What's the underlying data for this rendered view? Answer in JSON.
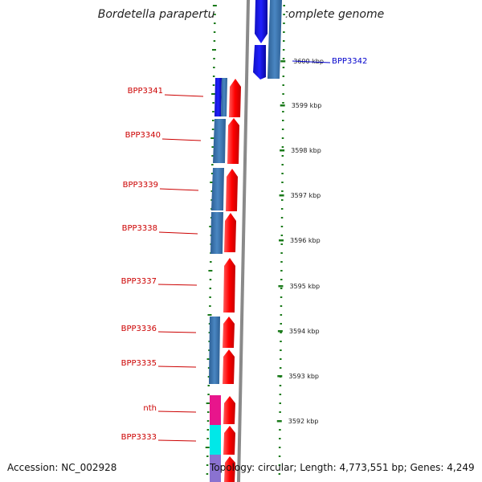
{
  "title": "Bordetella parapertussis 12822, complete genome",
  "accession": "Accession: NC_002928",
  "footer": "Topology: circular; Length: 4,773,551 bp; Genes: 4,249",
  "colors": {
    "forward_gene": "#ff0000",
    "reverse_gene": "#3d79b4",
    "label_red": "#cc0000",
    "label_blue": "#0000cc",
    "backbone": "#8a8a8a",
    "tick_green": "#1a7a1a"
  },
  "kbp_ticks": [
    {
      "label": "3600 kbp"
    },
    {
      "label": "3599 kbp"
    },
    {
      "label": "3598 kbp"
    },
    {
      "label": "3597 kbp"
    },
    {
      "label": "3596 kbp"
    },
    {
      "label": "3595 kbp"
    },
    {
      "label": "3594 kbp"
    },
    {
      "label": "3593 kbp"
    },
    {
      "label": "3592 kbp"
    }
  ],
  "gene_labels": [
    {
      "name": "BPP3342",
      "color": "#0000cc"
    },
    {
      "name": "BPP3341",
      "color": "#cc0000"
    },
    {
      "name": "BPP3340",
      "color": "#cc0000"
    },
    {
      "name": "BPP3339",
      "color": "#cc0000"
    },
    {
      "name": "BPP3338",
      "color": "#cc0000"
    },
    {
      "name": "BPP3337",
      "color": "#cc0000"
    },
    {
      "name": "BPP3336",
      "color": "#cc0000"
    },
    {
      "name": "BPP3335",
      "color": "#cc0000"
    },
    {
      "name": "nth",
      "color": "#cc0000"
    },
    {
      "name": "BPP3333",
      "color": "#cc0000"
    }
  ]
}
